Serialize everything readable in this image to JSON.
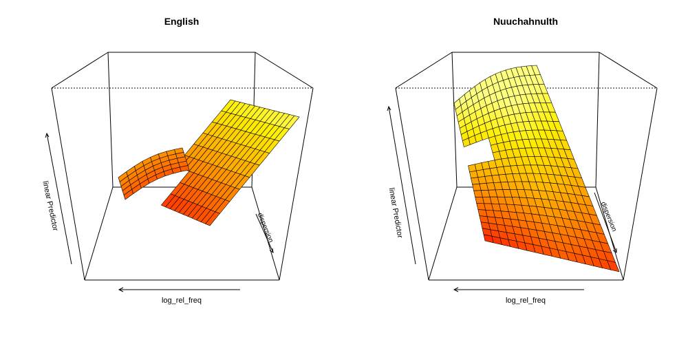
{
  "chart_data": [
    {
      "type": "surface",
      "title": "English",
      "xlabel": "log_rel_freq",
      "ylabel": "dispersion",
      "zlabel": "linear Predictor",
      "colors": [
        "#ff0000",
        "#ff4a00",
        "#ff8600",
        "#ffbd00",
        "#ffef00",
        "#ffff7f"
      ],
      "surface_shape": "stepped ridge surface rising from low (red) near front edge to high (yellow) at upper right",
      "grid": false
    },
    {
      "type": "surface",
      "title": "Nuuchahnulth",
      "xlabel": "log_rel_freq",
      "ylabel": "dispersion",
      "zlabel": "linear Predictor",
      "colors": [
        "#ff0000",
        "#ff4a00",
        "#ff8600",
        "#ffbd00",
        "#ffef00",
        "#ffff7f"
      ],
      "surface_shape": "steep ridge rising from low (red) at right corner to high (yellow) at top center",
      "grid": false
    }
  ]
}
